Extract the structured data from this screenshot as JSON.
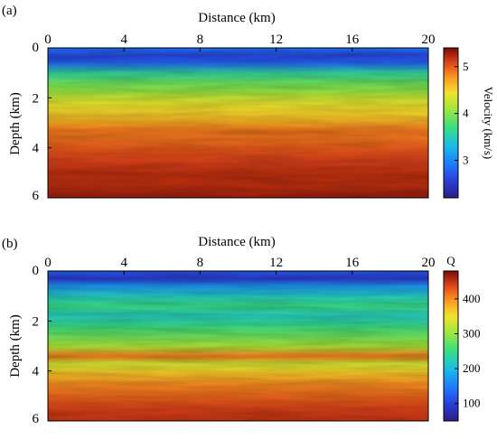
{
  "chart_data": [
    {
      "type": "heatmap",
      "panel_label": "(a)",
      "xlabel": "Distance (km)",
      "ylabel": "Depth (km)",
      "xlim": [
        0,
        20
      ],
      "ylim": [
        0,
        6
      ],
      "y_inverted": true,
      "x_ticks": [
        0,
        4,
        8,
        12,
        16,
        20
      ],
      "x_tick_labels": [
        "0",
        "4",
        "8",
        "12",
        "16",
        "20"
      ],
      "y_ticks": [
        0,
        2,
        4,
        6
      ],
      "y_tick_labels": [
        "0",
        "2",
        "4",
        "6"
      ],
      "colorbar": {
        "title": "Velocity (km/s)",
        "title_orientation": "vertical",
        "range": [
          2.2,
          5.4
        ],
        "ticks": [
          3,
          4,
          5
        ],
        "tick_labels": [
          "3",
          "4",
          "5"
        ],
        "colormap": "jet"
      },
      "depth_profile": {
        "depth": [
          0.0,
          0.3,
          0.6,
          1.0,
          1.4,
          1.8,
          2.2,
          2.6,
          3.0,
          3.3,
          3.6,
          4.0,
          4.5,
          5.0,
          5.5,
          6.0
        ],
        "value": [
          2.9,
          2.6,
          2.8,
          3.6,
          3.9,
          4.1,
          4.4,
          4.5,
          4.7,
          4.9,
          4.9,
          5.0,
          5.1,
          5.2,
          5.2,
          5.3
        ]
      }
    },
    {
      "type": "heatmap",
      "panel_label": "(b)",
      "xlabel": "Distance (km)",
      "ylabel": "Depth (km)",
      "xlim": [
        0,
        20
      ],
      "ylim": [
        0,
        6
      ],
      "y_inverted": true,
      "x_ticks": [
        0,
        4,
        8,
        12,
        16,
        20
      ],
      "x_tick_labels": [
        "0",
        "4",
        "8",
        "12",
        "16",
        "20"
      ],
      "y_ticks": [
        0,
        2,
        4,
        6
      ],
      "y_tick_labels": [
        "0",
        "2",
        "4",
        "6"
      ],
      "colorbar": {
        "title": "Q",
        "title_orientation": "horizontal",
        "range": [
          50,
          480
        ],
        "ticks": [
          100,
          200,
          300,
          400
        ],
        "tick_labels": [
          "100",
          "200",
          "300",
          "400"
        ],
        "colormap": "jet"
      },
      "depth_profile": {
        "depth": [
          0.0,
          0.3,
          0.6,
          1.0,
          1.4,
          1.8,
          2.2,
          2.6,
          3.0,
          3.4,
          3.7,
          4.0,
          4.5,
          5.0,
          5.5,
          6.0
        ],
        "value": [
          120,
          90,
          170,
          220,
          250,
          220,
          250,
          280,
          310,
          410,
          330,
          360,
          400,
          420,
          440,
          450
        ]
      }
    }
  ]
}
